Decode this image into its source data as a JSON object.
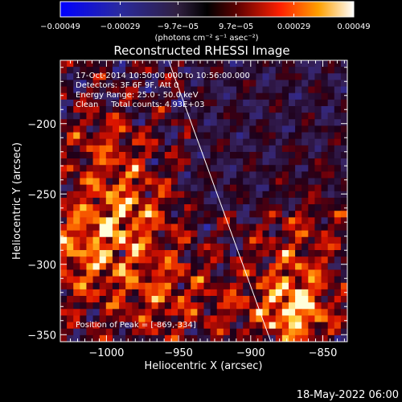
{
  "chart_data": {
    "type": "heatmap",
    "title": "Reconstructed RHESSI Image",
    "xlabel": "Heliocentric X (arcsec)",
    "ylabel": "Heliocentric Y (arcsec)",
    "xlim": [
      -1032,
      -833
    ],
    "ylim": [
      -355,
      -155
    ],
    "x_ticks": [
      -1000,
      -950,
      -900,
      -850
    ],
    "x_tick_labels": [
      "−1000",
      "−950",
      "−900",
      "−850"
    ],
    "y_ticks": [
      -200,
      -250,
      -300,
      -350
    ],
    "y_tick_labels": [
      "−200",
      "−250",
      "−300",
      "−350"
    ],
    "colorbar": {
      "min": -0.00049,
      "max": 0.00049,
      "tick_values": [
        -0.00049,
        -0.00029,
        -9.7e-05,
        9.7e-05,
        0.00029,
        0.00049
      ],
      "tick_labels": [
        "−0.00049",
        "−0.00029",
        "−9.7e−05",
        "9.7e−05",
        "0.00029",
        "0.00049"
      ],
      "unit_label": "(photons cm⁻² s⁻¹ asec⁻²)"
    },
    "annotations": [
      "17-Oct-2014 10:50:00.000 to 10:56:00.000",
      "Detectors: 3F 6F 9F, Att 0",
      "Energy Range: 25.0 - 50.0 keV",
      "Clean     Total counts: 4.93E+03"
    ],
    "peak_label": "Position of Peak = [-869,-334]",
    "peak": [
      -869,
      -334
    ],
    "limb_line": [
      [
        -957,
        -155
      ],
      [
        -886,
        -355
      ]
    ],
    "grid": false,
    "colors": {
      "background": "#000000",
      "foreground": "#ffffff",
      "limb": "#ffffff"
    }
  },
  "footer": {
    "timestamp": "18-May-2022 06:00"
  }
}
